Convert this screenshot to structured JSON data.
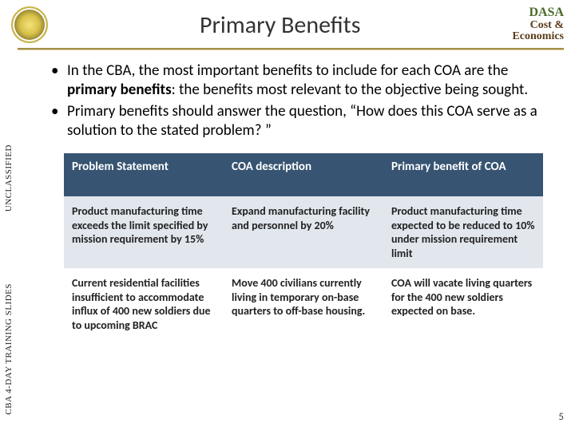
{
  "header": {
    "title": "Primary Benefits",
    "logo_line1": "DASA",
    "logo_line2": "Cost &",
    "logo_line3": "Economics"
  },
  "sidebar": {
    "label_top": "UNCLASSIFIED",
    "label_bottom": "CBA 4-DAY TRAINING SLIDES"
  },
  "bullets": [
    {
      "pre": "In the CBA, the most important benefits to include for each COA are the ",
      "bold": "primary benefits",
      "post": ": the benefits most relevant to the objective being sought."
    },
    {
      "pre": "Primary benefits should answer the question, “How does this COA serve as a solution to the stated problem? ”",
      "bold": "",
      "post": ""
    }
  ],
  "table": {
    "columns": [
      "Problem Statement",
      "COA description",
      "Primary benefit of COA"
    ],
    "rows": [
      [
        "Product manufacturing time exceeds the limit specified by mission requirement by 15%",
        "Expand manufacturing facility and personnel by 20%",
        "Product manufacturing time expected to be reduced to 10% under mission requirement limit"
      ],
      [
        "Current residential facilities insufficient to accommodate influx of 400 new soldiers due to upcoming BRAC",
        "Move 400 civilians currently living in temporary on-base quarters to off-base housing.",
        "COA will vacate living quarters for the 400 new soldiers expected on base."
      ]
    ],
    "header_bg": "#375472",
    "header_fg": "#ffffff",
    "row_bgs": [
      "#e2e7ee",
      "#ffffff"
    ]
  },
  "page_number": "5",
  "colors": {
    "divider": "#a38f4a",
    "title": "#333333"
  }
}
